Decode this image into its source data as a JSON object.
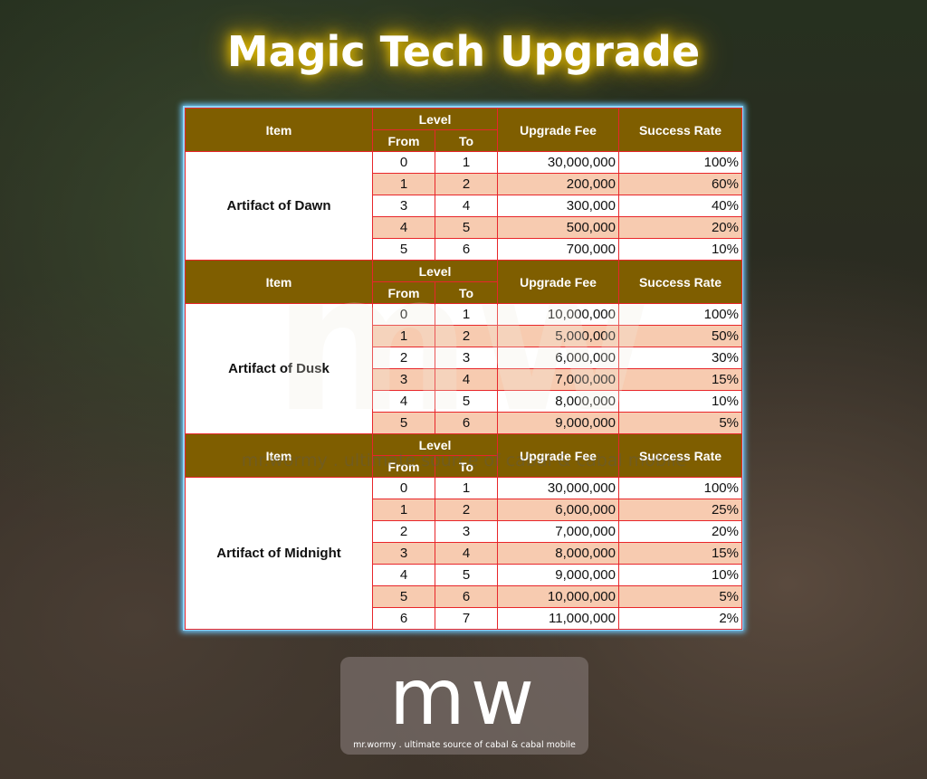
{
  "title": "Magic Tech Upgrade",
  "headers": {
    "item": "Item",
    "level": "Level",
    "from": "From",
    "to": "To",
    "fee": "Upgrade Fee",
    "rate": "Success Rate"
  },
  "colors": {
    "header_bg": "#7f5e00",
    "alt_row": "#f7cbb0",
    "border": "#e8262a",
    "panel_glow": "#6cc8ff",
    "title_glow": "#e8c000"
  },
  "sections": [
    {
      "item": "Artifact of Dawn",
      "rows": [
        {
          "from": "0",
          "to": "1",
          "fee": "30,000,000",
          "rate": "100%"
        },
        {
          "from": "1",
          "to": "2",
          "fee": "200,000",
          "rate": "60%"
        },
        {
          "from": "3",
          "to": "4",
          "fee": "300,000",
          "rate": "40%"
        },
        {
          "from": "4",
          "to": "5",
          "fee": "500,000",
          "rate": "20%"
        },
        {
          "from": "5",
          "to": "6",
          "fee": "700,000",
          "rate": "10%"
        }
      ]
    },
    {
      "item": "Artifact of Dusk",
      "rows": [
        {
          "from": "0",
          "to": "1",
          "fee": "10,000,000",
          "rate": "100%"
        },
        {
          "from": "1",
          "to": "2",
          "fee": "5,000,000",
          "rate": "50%"
        },
        {
          "from": "2",
          "to": "3",
          "fee": "6,000,000",
          "rate": "30%"
        },
        {
          "from": "3",
          "to": "4",
          "fee": "7,000,000",
          "rate": "15%"
        },
        {
          "from": "4",
          "to": "5",
          "fee": "8,000,000",
          "rate": "10%"
        },
        {
          "from": "5",
          "to": "6",
          "fee": "9,000,000",
          "rate": "5%"
        }
      ]
    },
    {
      "item": "Artifact of Midnight",
      "rows": [
        {
          "from": "0",
          "to": "1",
          "fee": "30,000,000",
          "rate": "100%"
        },
        {
          "from": "1",
          "to": "2",
          "fee": "6,000,000",
          "rate": "25%"
        },
        {
          "from": "2",
          "to": "3",
          "fee": "7,000,000",
          "rate": "20%"
        },
        {
          "from": "3",
          "to": "4",
          "fee": "8,000,000",
          "rate": "15%"
        },
        {
          "from": "4",
          "to": "5",
          "fee": "9,000,000",
          "rate": "10%"
        },
        {
          "from": "5",
          "to": "6",
          "fee": "10,000,000",
          "rate": "5%"
        },
        {
          "from": "6",
          "to": "7",
          "fee": "11,000,000",
          "rate": "2%"
        }
      ]
    }
  ],
  "watermark": {
    "mark": "mw",
    "tagline": "mr.wormy . ultimate source of cabal & cabal mobile"
  },
  "logo": {
    "mark": "mw",
    "tagline": "mr.wormy . ultimate source of cabal & cabal mobile"
  }
}
